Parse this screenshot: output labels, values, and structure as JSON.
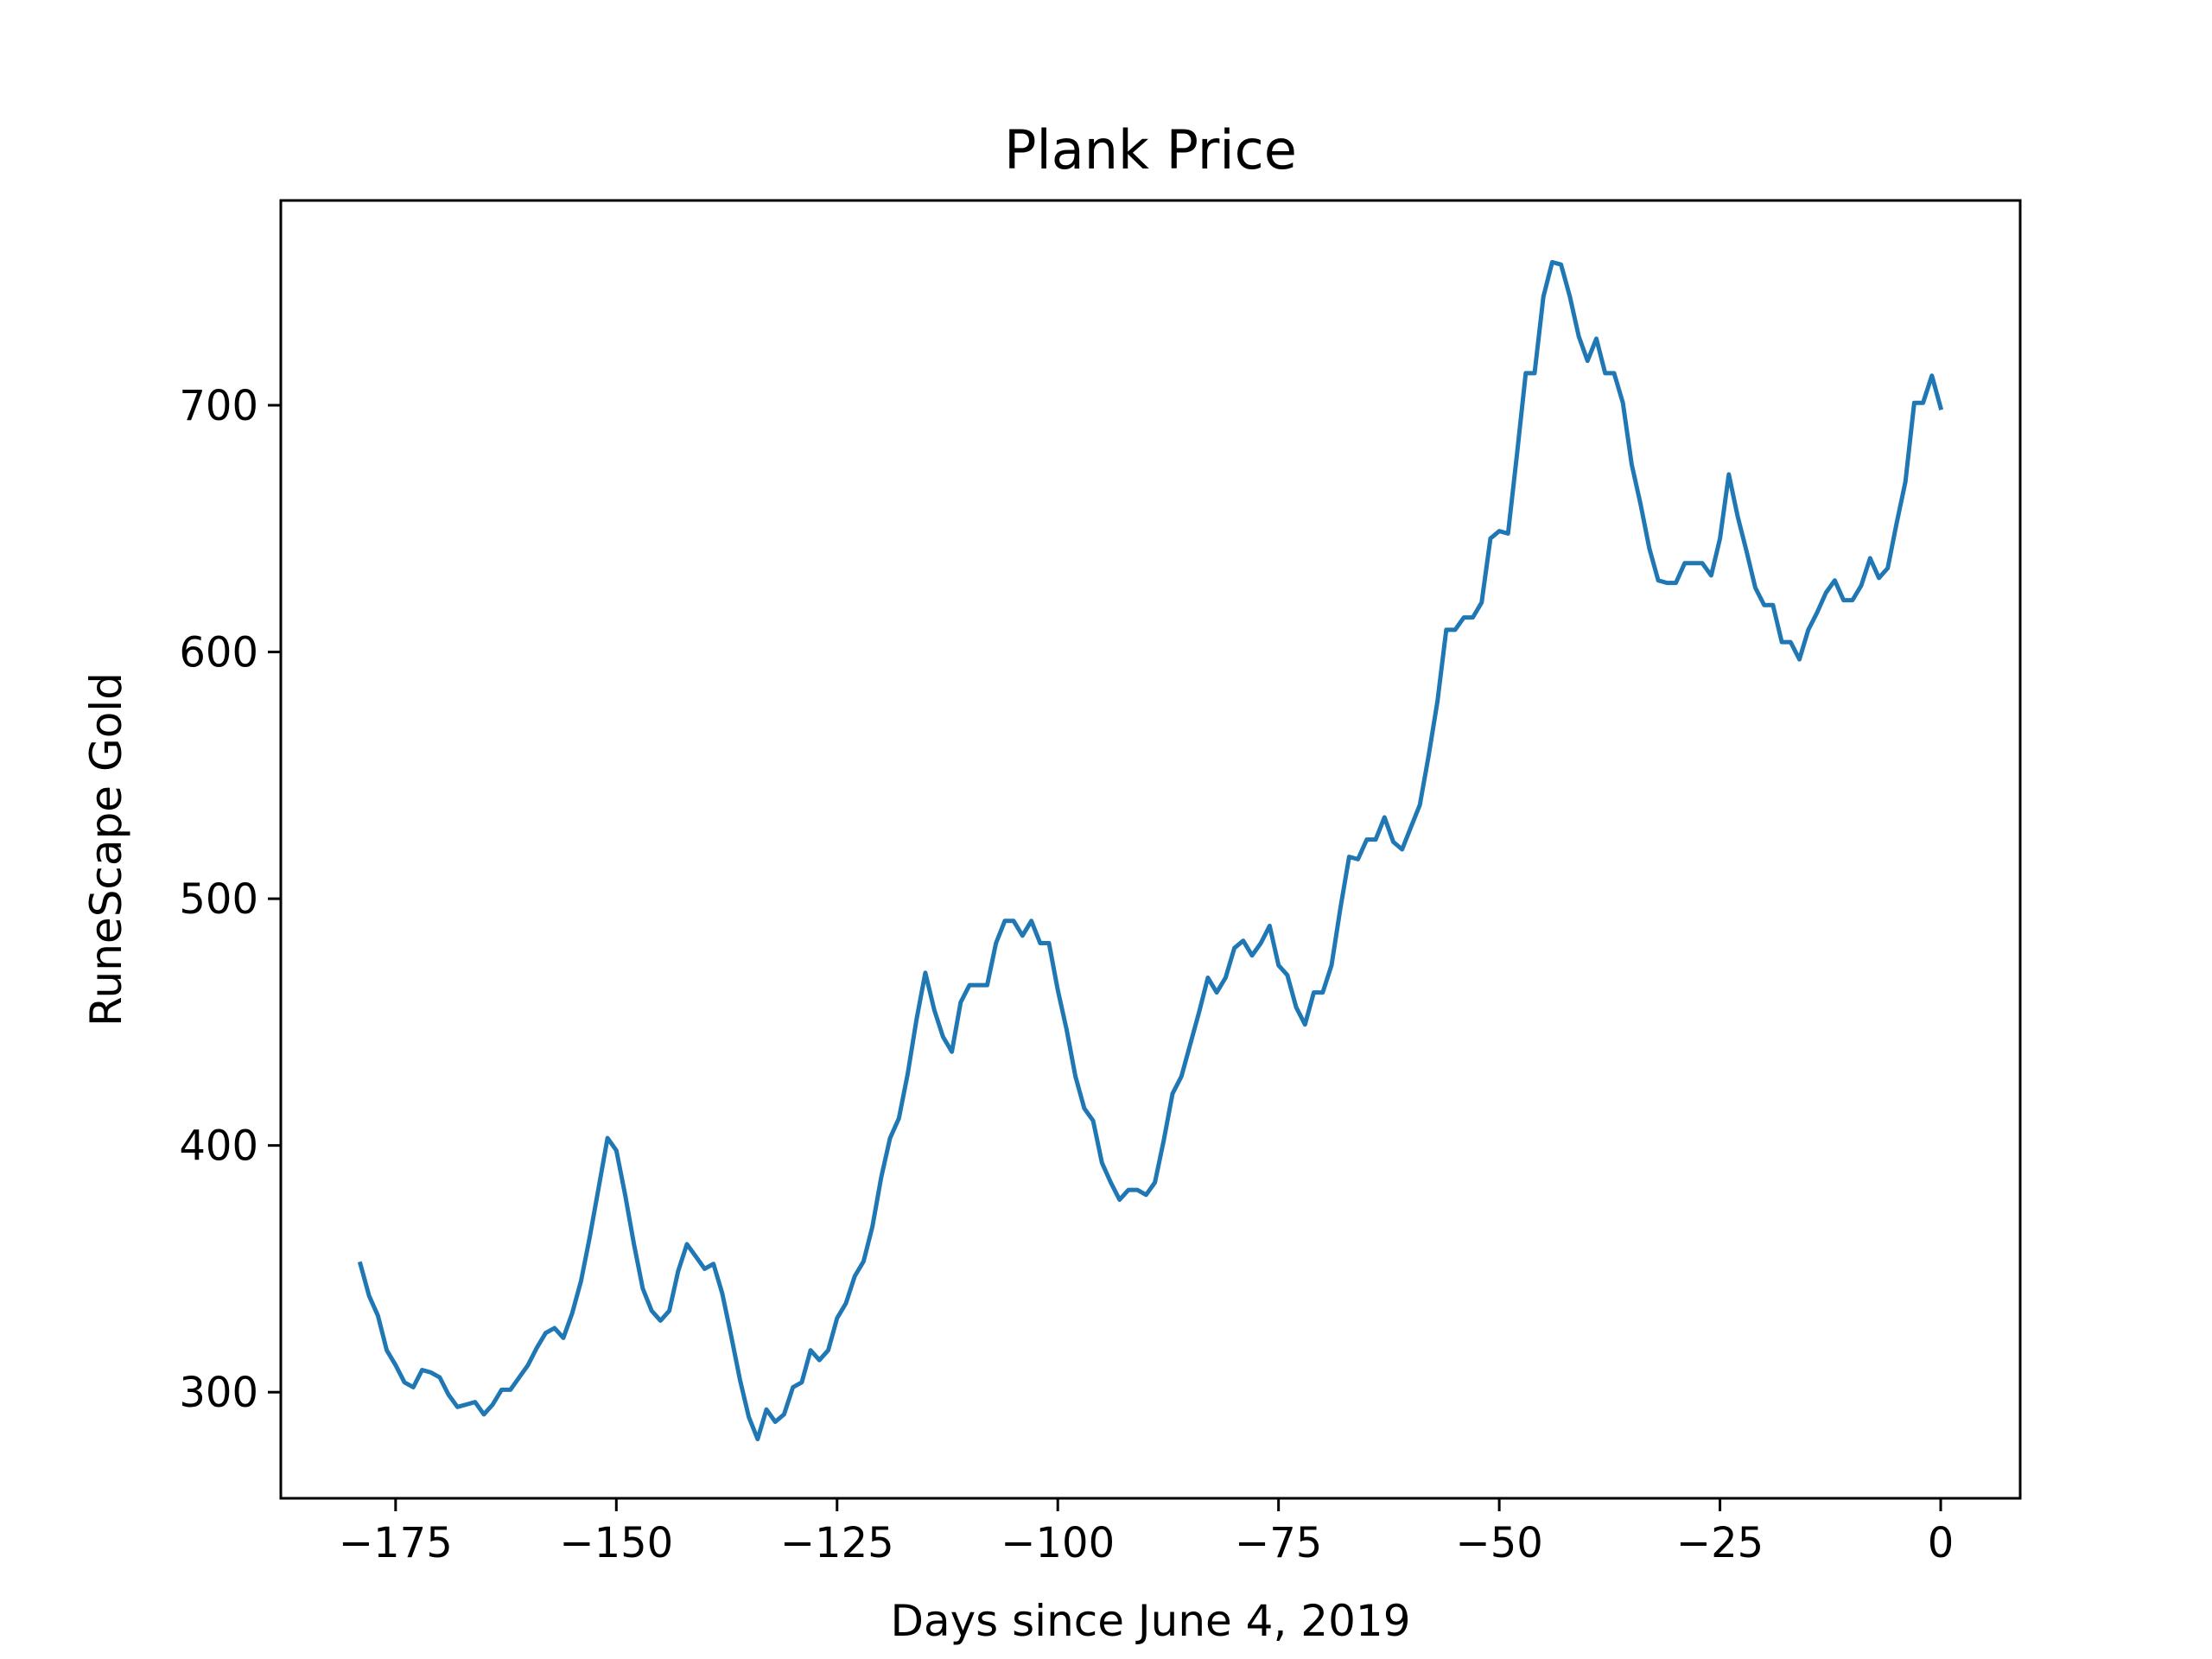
{
  "chart_data": {
    "type": "line",
    "title": "Plank Price",
    "xlabel": "Days since June 4, 2019",
    "ylabel": "RuneScape Gold",
    "xlim": [
      -188,
      9
    ],
    "ylim": [
      257,
      783
    ],
    "xticks": [
      -175,
      -150,
      -125,
      -100,
      -75,
      -50,
      -25,
      0
    ],
    "yticks": [
      300,
      400,
      500,
      600,
      700
    ],
    "grid": false,
    "line_color": "#1f77b4",
    "series": [
      {
        "x": [
          -179,
          -178,
          -177,
          -176,
          -175,
          -174,
          -173,
          -172,
          -171,
          -170,
          -169,
          -168,
          -167,
          -166,
          -165,
          -164,
          -163,
          -162,
          -161,
          -160,
          -159,
          -158,
          -157,
          -156,
          -155,
          -154,
          -153,
          -152,
          -151,
          -150,
          -149,
          -148,
          -147,
          -146,
          -145,
          -144,
          -143,
          -142,
          -141,
          -140,
          -139,
          -138,
          -137,
          -136,
          -135,
          -134,
          -133,
          -132,
          -131,
          -130,
          -129,
          -128,
          -127,
          -126,
          -125,
          -124,
          -123,
          -122,
          -121,
          -120,
          -119,
          -118,
          -117,
          -116,
          -115,
          -114,
          -113,
          -112,
          -111,
          -110,
          -109,
          -108,
          -107,
          -106,
          -105,
          -104,
          -103,
          -102,
          -101,
          -100,
          -99,
          -98,
          -97,
          -96,
          -95,
          -94,
          -93,
          -92,
          -91,
          -90,
          -89,
          -88,
          -87,
          -86,
          -85,
          -84,
          -83,
          -82,
          -81,
          -80,
          -79,
          -78,
          -77,
          -76,
          -75,
          -74,
          -73,
          -72,
          -71,
          -70,
          -69,
          -68,
          -67,
          -66,
          -65,
          -64,
          -63,
          -62,
          -61,
          -60,
          -59,
          -58,
          -57,
          -56,
          -55,
          -54,
          -53,
          -52,
          -51,
          -50,
          -49,
          -48,
          -47,
          -46,
          -45,
          -44,
          -43,
          -42,
          -41,
          -40,
          -39,
          -38,
          -37,
          -36,
          -35,
          -34,
          -33,
          -32,
          -31,
          -30,
          -29,
          -28,
          -27,
          -26,
          -25,
          -24,
          -23,
          -22,
          -21,
          -20,
          -19,
          -18,
          -17,
          -16,
          -15,
          -14,
          -13,
          -12,
          -11,
          -10,
          -9,
          -8,
          -7,
          -6,
          -5,
          -4,
          -3,
          -2,
          -1,
          0
        ],
        "values": [
          352,
          339,
          331,
          317,
          311,
          304,
          302,
          309,
          308,
          306,
          299,
          294,
          295,
          296,
          291,
          295,
          301,
          301,
          306,
          311,
          318,
          324,
          326,
          322,
          332,
          345,
          363,
          383,
          403,
          398,
          380,
          360,
          342,
          333,
          329,
          333,
          349,
          360,
          355,
          350,
          352,
          340,
          323,
          305,
          290,
          281,
          293,
          288,
          291,
          302,
          304,
          317,
          313,
          317,
          330,
          336,
          347,
          353,
          367,
          387,
          403,
          411,
          429,
          451,
          470,
          455,
          444,
          438,
          458,
          465,
          465,
          465,
          482,
          491,
          491,
          485,
          491,
          482,
          482,
          463,
          447,
          428,
          415,
          410,
          393,
          385,
          378,
          382,
          382,
          380,
          385,
          402,
          421,
          428,
          441,
          454,
          468,
          462,
          468,
          480,
          483,
          477,
          482,
          489,
          473,
          469,
          456,
          449,
          462,
          462,
          473,
          496,
          517,
          516,
          524,
          524,
          533,
          523,
          520,
          529,
          538,
          558,
          580,
          609,
          609,
          614,
          614,
          620,
          646,
          649,
          648,
          680,
          713,
          713,
          744,
          758,
          757,
          744,
          728,
          718,
          727,
          713,
          713,
          701,
          676,
          660,
          642,
          629,
          628,
          628,
          636,
          636,
          636,
          631,
          646,
          672,
          655,
          641,
          626,
          619,
          619,
          604,
          604,
          597,
          609,
          616,
          624,
          629,
          621,
          621,
          627,
          638,
          630,
          634,
          652,
          669,
          701,
          701,
          712,
          699
        ]
      }
    ]
  }
}
